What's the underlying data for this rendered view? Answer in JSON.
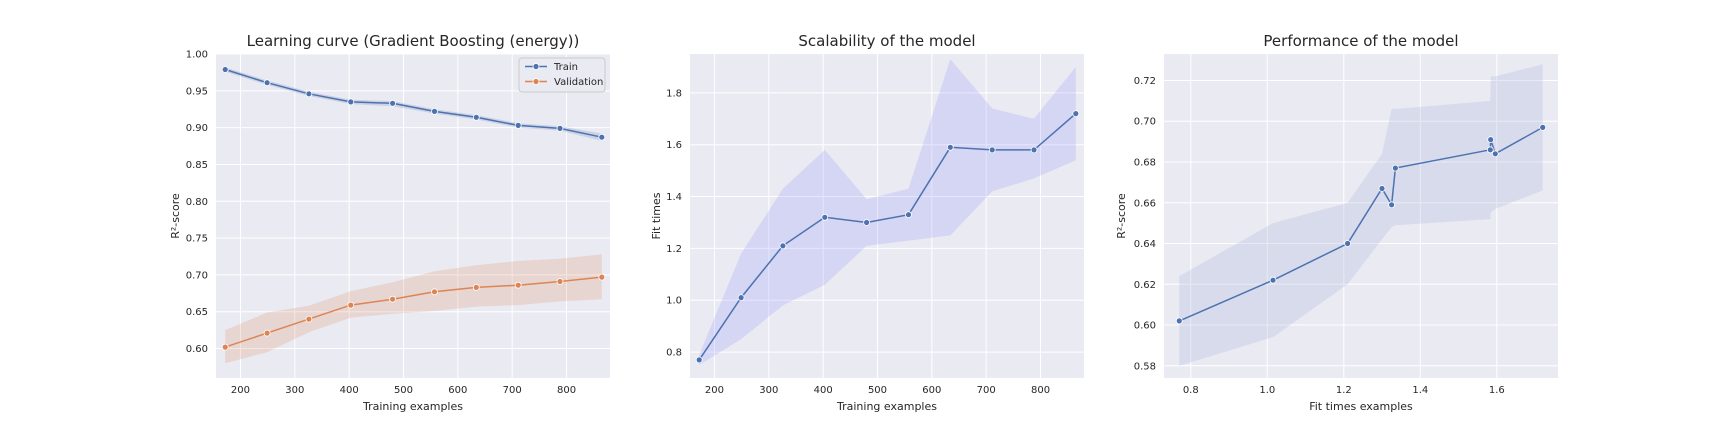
{
  "chart_data": [
    {
      "type": "line",
      "title": "Learning curve (Gradient Boosting (energy))",
      "xlabel": "Training examples",
      "ylabel": "R²-score",
      "xlim": [
        155,
        880
      ],
      "ylim": [
        0.56,
        1.0
      ],
      "xticks": [
        200,
        300,
        400,
        500,
        600,
        700,
        800
      ],
      "yticks": [
        0.6,
        0.65,
        0.7,
        0.75,
        0.8,
        0.85,
        0.9,
        0.95,
        1.0
      ],
      "grid": true,
      "legend": "top-right",
      "x": [
        172,
        249,
        326,
        403,
        480,
        557,
        634,
        711,
        788,
        865
      ],
      "series": [
        {
          "name": "Train",
          "color": "#4c72b0",
          "values": [
            0.979,
            0.961,
            0.946,
            0.935,
            0.933,
            0.922,
            0.914,
            0.903,
            0.899,
            0.887
          ],
          "lower": [
            0.976,
            0.958,
            0.943,
            0.932,
            0.929,
            0.919,
            0.911,
            0.9,
            0.896,
            0.882
          ],
          "upper": [
            0.982,
            0.964,
            0.949,
            0.938,
            0.936,
            0.925,
            0.917,
            0.906,
            0.902,
            0.892
          ]
        },
        {
          "name": "Validation",
          "color": "#dd8452",
          "values": [
            0.602,
            0.621,
            0.64,
            0.659,
            0.667,
            0.677,
            0.683,
            0.686,
            0.691,
            0.697
          ],
          "lower": [
            0.58,
            0.595,
            0.622,
            0.642,
            0.647,
            0.651,
            0.657,
            0.659,
            0.664,
            0.667
          ],
          "upper": [
            0.625,
            0.649,
            0.658,
            0.678,
            0.69,
            0.705,
            0.713,
            0.719,
            0.722,
            0.728
          ]
        }
      ]
    },
    {
      "type": "line",
      "title": "Scalability of the model",
      "xlabel": "Training examples",
      "ylabel": "Fit times",
      "xlim": [
        155,
        880
      ],
      "ylim": [
        0.7,
        1.95
      ],
      "xticks": [
        200,
        300,
        400,
        500,
        600,
        700,
        800
      ],
      "yticks": [
        0.8,
        1.0,
        1.2,
        1.4,
        1.6,
        1.8
      ],
      "grid": true,
      "x": [
        172,
        249,
        326,
        403,
        480,
        557,
        634,
        711,
        788,
        865
      ],
      "series": [
        {
          "color": "#4c72b0",
          "band_color": "#8080ff",
          "values": [
            0.77,
            1.01,
            1.21,
            1.32,
            1.3,
            1.33,
            1.59,
            1.58,
            1.58,
            1.72
          ],
          "lower": [
            0.75,
            0.85,
            0.98,
            1.06,
            1.21,
            1.23,
            1.25,
            1.42,
            1.47,
            1.54
          ],
          "upper": [
            0.79,
            1.18,
            1.43,
            1.58,
            1.39,
            1.43,
            1.93,
            1.74,
            1.7,
            1.9
          ]
        }
      ]
    },
    {
      "type": "line",
      "title": "Performance of the model",
      "xlabel": "Fit times examples",
      "ylabel": "R²-score",
      "xlim": [
        0.73,
        1.76
      ],
      "ylim": [
        0.574,
        0.733
      ],
      "xticks": [
        0.8,
        1.0,
        1.2,
        1.4,
        1.6
      ],
      "yticks": [
        0.58,
        0.6,
        0.62,
        0.64,
        0.66,
        0.68,
        0.7,
        0.72
      ],
      "grid": true,
      "series": [
        {
          "color": "#4c72b0",
          "band_color": "#b0b8dc",
          "x": [
            0.77,
            1.015,
            1.21,
            1.3,
            1.325,
            1.335,
            1.583,
            1.584,
            1.596,
            1.72
          ],
          "values": [
            0.602,
            0.622,
            0.64,
            0.667,
            0.659,
            0.677,
            0.686,
            0.691,
            0.684,
            0.697
          ],
          "lower": [
            0.58,
            0.594,
            0.62,
            0.642,
            0.648,
            0.649,
            0.652,
            0.655,
            0.657,
            0.666
          ],
          "upper": [
            0.624,
            0.65,
            0.66,
            0.684,
            0.706,
            0.706,
            0.71,
            0.722,
            0.722,
            0.728
          ]
        }
      ]
    }
  ]
}
